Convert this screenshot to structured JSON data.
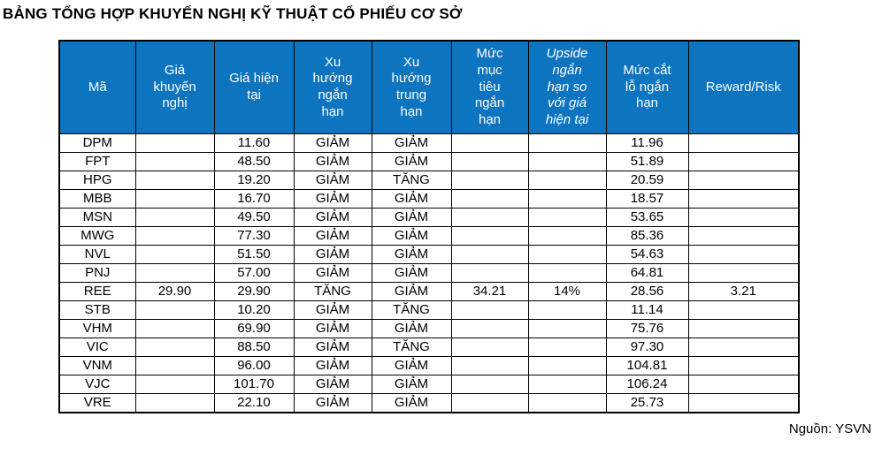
{
  "page": {
    "title": "BẢNG TỔNG HỢP KHUYẾN NGHỊ KỸ THUẬT CỔ PHIẾU CƠ SỞ",
    "source_note": "Nguồn: YSVN"
  },
  "colors": {
    "header_bg": "#0d74c0",
    "header_text": "#ffffff",
    "border": "#000000",
    "body_text": "#000000"
  },
  "table": {
    "columns": [
      {
        "key": "ma",
        "label": "Mã",
        "italic": false
      },
      {
        "key": "gia-khuyen-nghi",
        "label": "Giá khuyến nghị",
        "italic": false
      },
      {
        "key": "gia-hien-tai",
        "label": "Giá hiện tại",
        "italic": false
      },
      {
        "key": "xu-huong-ngan-han",
        "label": "Xu hướng ngắn hạn",
        "italic": false
      },
      {
        "key": "xu-huong-trung-han",
        "label": "Xu hướng trung hạn",
        "italic": false
      },
      {
        "key": "muc-muc-tieu-ngan-han",
        "label": "Mức mục tiêu ngắn hạn",
        "italic": false
      },
      {
        "key": "upside-ngan-han-so-voi-gia-hien-tai",
        "label": "Upside ngắn hạn so với giá hiện tại",
        "italic": true
      },
      {
        "key": "muc-cat-lo-ngan-han",
        "label": "Mức cắt lỗ ngắn hạn",
        "italic": false
      },
      {
        "key": "reward-risk",
        "label": "Reward/Risk",
        "italic": false
      }
    ],
    "rows": [
      {
        "cells": [
          "DPM",
          "",
          "11.60",
          "GIẢM",
          "GIẢM",
          "",
          "",
          "11.96",
          ""
        ]
      },
      {
        "cells": [
          "FPT",
          "",
          "48.50",
          "GIẢM",
          "GIẢM",
          "",
          "",
          "51.89",
          ""
        ]
      },
      {
        "cells": [
          "HPG",
          "",
          "19.20",
          "GIẢM",
          "TĂNG",
          "",
          "",
          "20.59",
          ""
        ]
      },
      {
        "cells": [
          "MBB",
          "",
          "16.70",
          "GIẢM",
          "GIẢM",
          "",
          "",
          "18.57",
          ""
        ]
      },
      {
        "cells": [
          "MSN",
          "",
          "49.50",
          "GIẢM",
          "GIẢM",
          "",
          "",
          "53.65",
          ""
        ]
      },
      {
        "cells": [
          "MWG",
          "",
          "77.30",
          "GIẢM",
          "GIẢM",
          "",
          "",
          "85.36",
          ""
        ]
      },
      {
        "cells": [
          "NVL",
          "",
          "51.50",
          "GIẢM",
          "GIẢM",
          "",
          "",
          "54.63",
          ""
        ]
      },
      {
        "cells": [
          "PNJ",
          "",
          "57.00",
          "GIẢM",
          "GIẢM",
          "",
          "",
          "64.81",
          ""
        ]
      },
      {
        "cells": [
          "REE",
          "29.90",
          "29.90",
          "TĂNG",
          "GIẢM",
          "34.21",
          "14%",
          "28.56",
          "3.21"
        ]
      },
      {
        "cells": [
          "STB",
          "",
          "10.20",
          "GIẢM",
          "TĂNG",
          "",
          "",
          "11.14",
          ""
        ]
      },
      {
        "cells": [
          "VHM",
          "",
          "69.90",
          "GIẢM",
          "GIẢM",
          "",
          "",
          "75.76",
          ""
        ]
      },
      {
        "cells": [
          "VIC",
          "",
          "88.50",
          "GIẢM",
          "TĂNG",
          "",
          "",
          "97.30",
          ""
        ]
      },
      {
        "cells": [
          "VNM",
          "",
          "96.00",
          "GIẢM",
          "GIẢM",
          "",
          "",
          "104.81",
          ""
        ]
      },
      {
        "cells": [
          "VJC",
          "",
          "101.70",
          "GIẢM",
          "GIẢM",
          "",
          "",
          "106.24",
          ""
        ]
      },
      {
        "cells": [
          "VRE",
          "",
          "22.10",
          "GIẢM",
          "GIẢM",
          "",
          "",
          "25.73",
          ""
        ]
      }
    ]
  }
}
